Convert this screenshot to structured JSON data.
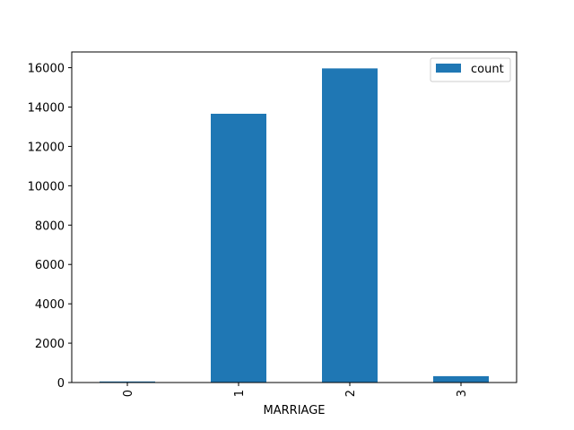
{
  "chart_data": {
    "type": "bar",
    "categories": [
      "0",
      "1",
      "2",
      "3"
    ],
    "series": [
      {
        "name": "count",
        "values": [
          54,
          13659,
          15964,
          323
        ],
        "color": "#1f77b4"
      }
    ],
    "xlabel": "MARRIAGE",
    "ylabel": "",
    "ylim": [
      0,
      16800
    ],
    "yticks": [
      0,
      2000,
      4000,
      6000,
      8000,
      10000,
      12000,
      14000,
      16000
    ],
    "xtick_rotation": "vertical",
    "grid": false,
    "legend": {
      "position": "top-right",
      "entries": [
        "count"
      ]
    }
  }
}
